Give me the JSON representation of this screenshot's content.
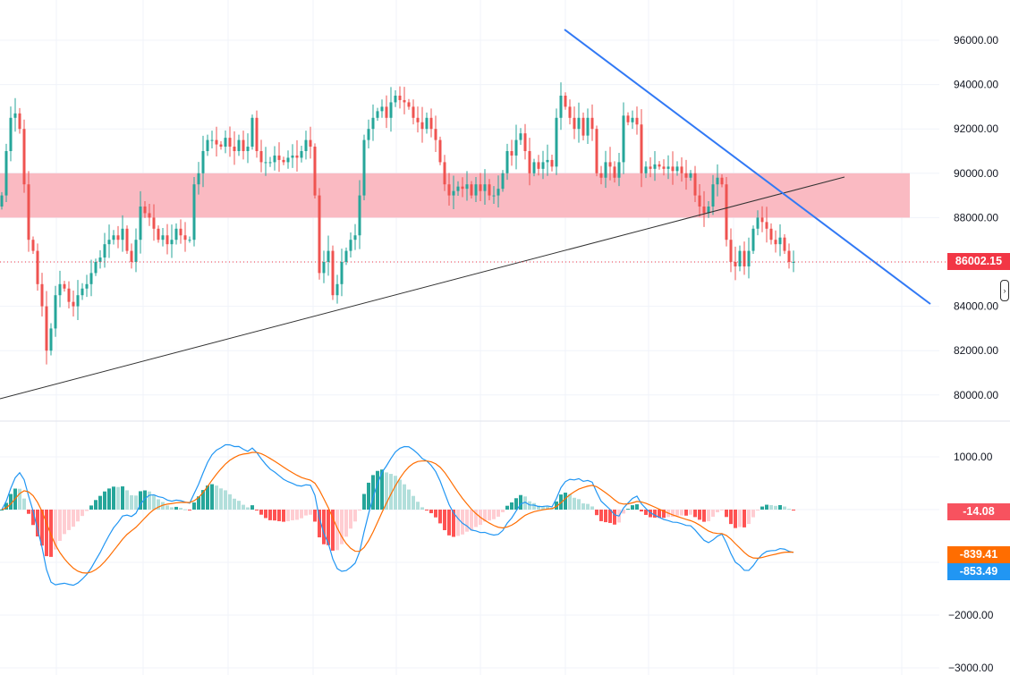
{
  "chart_data": {
    "type": "candlestick",
    "title": "",
    "price_axis": {
      "ticks": [
        "96000.00",
        "94000.00",
        "92000.00",
        "90000.00",
        "88000.00",
        "84000.00",
        "82000.00",
        "80000.00"
      ],
      "tick_values": [
        96000,
        94000,
        92000,
        90000,
        88000,
        84000,
        82000,
        80000
      ],
      "range": [
        79000,
        97000
      ]
    },
    "closes": [
      89000,
      91000,
      92500,
      92700,
      92000,
      89500,
      87000,
      86500,
      85000,
      84000,
      82000,
      83000,
      84500,
      85000,
      84800,
      84200,
      84000,
      84500,
      84800,
      85000,
      85500,
      86000,
      86200,
      86800,
      87000,
      87200,
      87000,
      87500,
      86500,
      86000,
      87000,
      88500,
      88200,
      88000,
      87500,
      87000,
      87200,
      86800,
      87000,
      87500,
      87200,
      87000,
      87000,
      89500,
      90000,
      91000,
      91500,
      91500,
      91300,
      91200,
      91600,
      91200,
      91000,
      91500,
      91000,
      91200,
      92500,
      91000,
      90500,
      90500,
      90500,
      90800,
      90600,
      90500,
      90700,
      90800,
      90700,
      91000,
      91500,
      91200,
      89000,
      85500,
      86000,
      86500,
      84500,
      85000,
      86000,
      86500,
      87000,
      87200,
      89000,
      91500,
      92000,
      92500,
      92800,
      93000,
      92500,
      93200,
      93500,
      93300,
      93200,
      93000,
      92500,
      92300,
      92000,
      92500,
      92000,
      91500,
      90500,
      89500,
      89000,
      89200,
      89400,
      89300,
      89500,
      89000,
      89500,
      89200,
      89500,
      89000,
      89000,
      89300,
      90000,
      91000,
      90800,
      91500,
      91800,
      91000,
      90000,
      90500,
      90200,
      90500,
      90600,
      90300,
      92500,
      93500,
      93000,
      92500,
      92000,
      92500,
      91700,
      92500,
      92000,
      90000,
      89800,
      90500,
      90300,
      89800,
      90500,
      92600,
      92300,
      92500,
      92200,
      90000,
      90300,
      90200,
      90400,
      90300,
      90200,
      90300,
      90100,
      90300,
      90000,
      89800,
      90000,
      89000,
      88500,
      88200,
      88500,
      89500,
      89800,
      89500,
      87000,
      86000,
      85800,
      86500,
      85800,
      86500,
      87500,
      88000,
      87800,
      87500,
      87000,
      86800,
      87100,
      86500,
      86000,
      86002.15
    ],
    "last_price": "86002.15",
    "resistance_zone": {
      "from": 88000,
      "to": 90000
    },
    "colors": {
      "up": "#26a69a",
      "down": "#ef5350",
      "zone": "#f9b3bb",
      "trend_blue": "#2962ff",
      "macd": "#2196f3",
      "signal": "#ff6d00"
    },
    "macd_pane": {
      "params": [
        12,
        26,
        9
      ],
      "ticks": [
        "1000.00",
        "-2000.00",
        "-3000.00"
      ],
      "tick_values": [
        1000,
        -2000,
        -3000
      ],
      "histogram_label": "-14.08",
      "signal_label": "-839.41",
      "macd_label": "-853.49"
    }
  }
}
